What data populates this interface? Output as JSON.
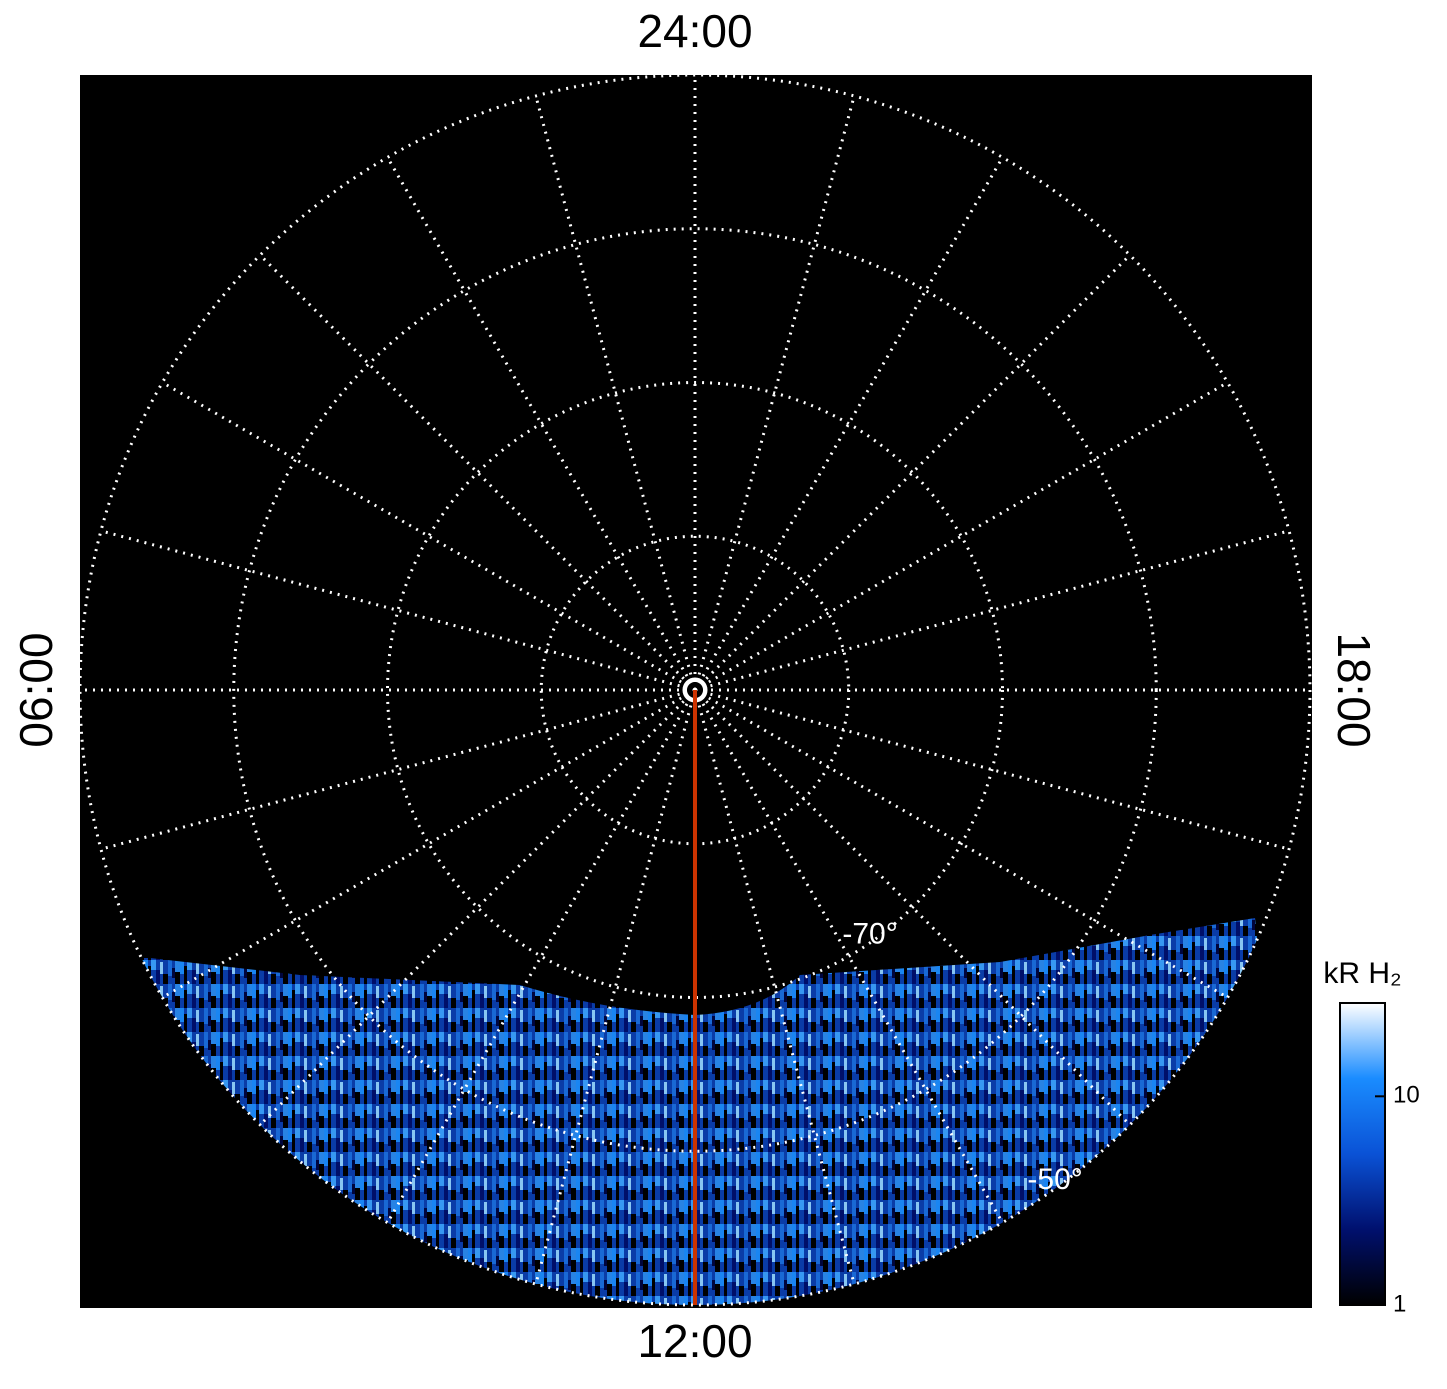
{
  "chart_data": {
    "type": "polar",
    "theta_unit_hours": 24,
    "hour_labels": [
      {
        "value": 24,
        "label": "24:00"
      },
      {
        "value": 6,
        "label": "06:00"
      },
      {
        "value": 12,
        "label": "12:00"
      },
      {
        "value": 18,
        "label": "18:00"
      }
    ],
    "hour_grid_step": 1,
    "rlim": [
      -90,
      -50
    ],
    "rgrid": [
      -80,
      -70,
      -60,
      -50
    ],
    "rtick_labels": [
      {
        "value": -70,
        "label": "-70°"
      },
      {
        "value": -50,
        "label": "-50°"
      }
    ],
    "grid_color": "#ffffff",
    "background": "#000000",
    "meridian_hour": 12,
    "meridian_color": "#cc3300",
    "colorbar": {
      "title": "kR H₂",
      "log": true,
      "lim": [
        1,
        28
      ],
      "ticks": [
        1,
        10
      ],
      "colors": [
        "#000000",
        "#00106e",
        "#0a52d6",
        "#1a8cff",
        "#ffffff"
      ]
    }
  }
}
